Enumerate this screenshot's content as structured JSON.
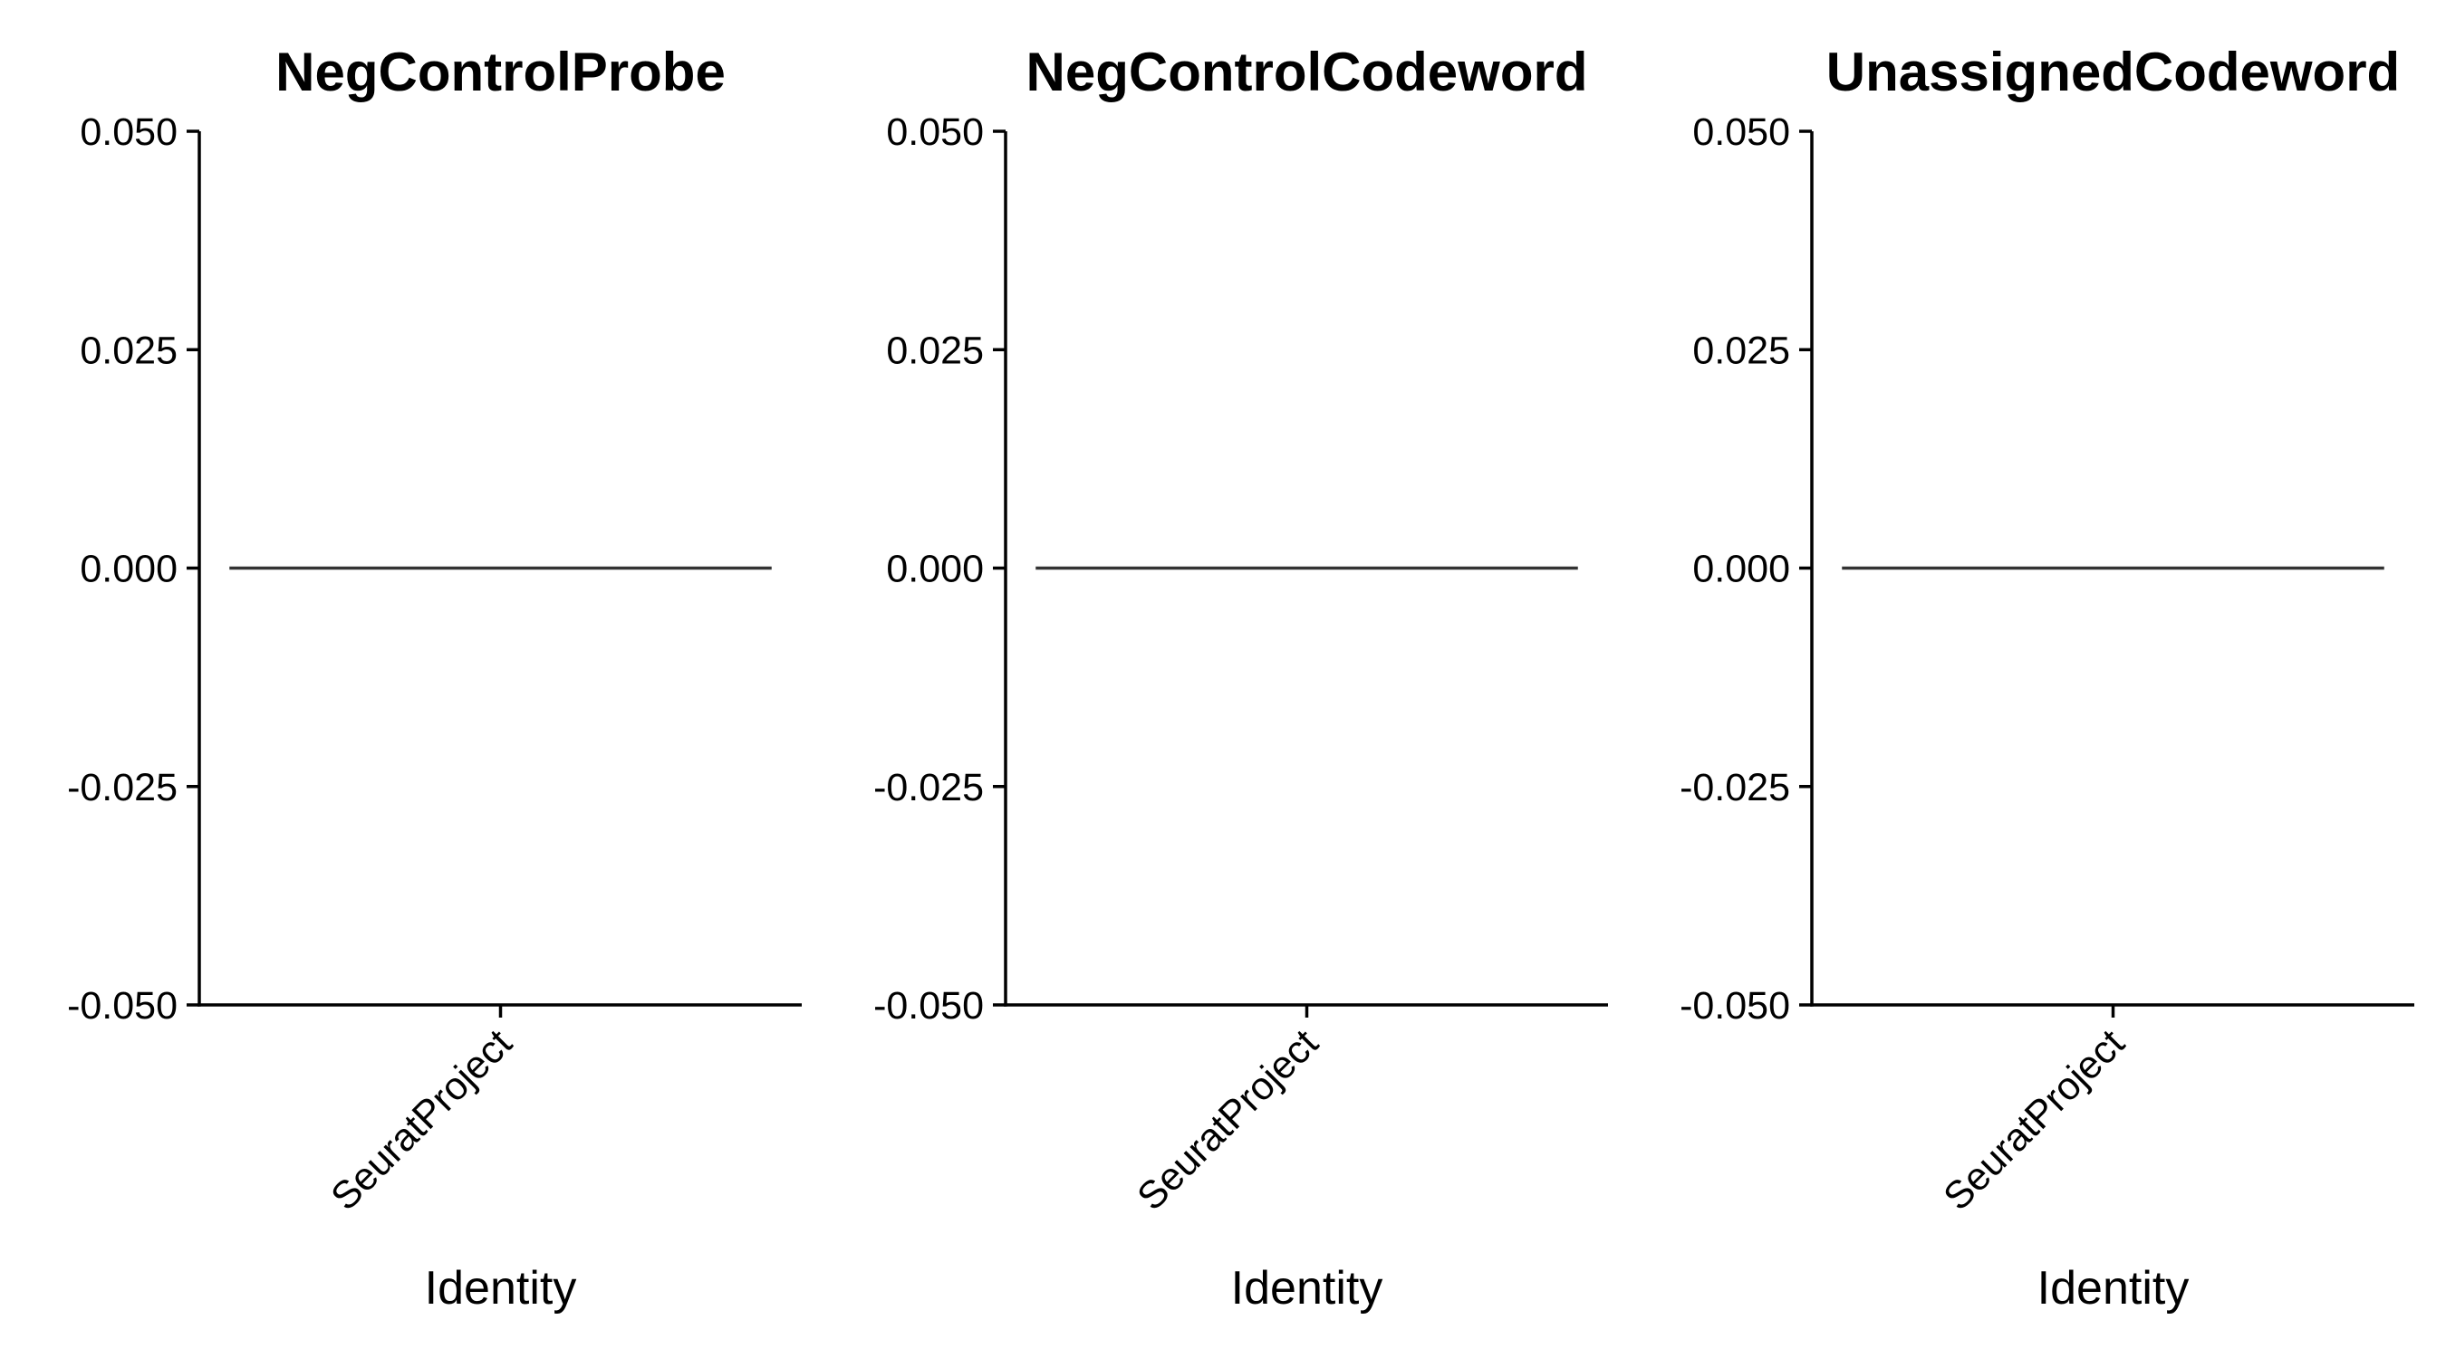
{
  "chart_data": [
    {
      "type": "violin",
      "title": "NegControlProbe",
      "xlabel": "Identity",
      "ylabel": "",
      "categories": [
        "SeuratProject"
      ],
      "values": [
        0.0
      ],
      "ylim": [
        -0.05,
        0.05
      ],
      "yticks": [
        "0.050",
        "0.025",
        "0.000",
        "-0.025",
        "-0.050"
      ],
      "ytick_values": [
        0.05,
        0.025,
        0.0,
        -0.025,
        -0.05
      ],
      "grid": false,
      "legend": "none"
    },
    {
      "type": "violin",
      "title": "NegControlCodeword",
      "xlabel": "Identity",
      "ylabel": "",
      "categories": [
        "SeuratProject"
      ],
      "values": [
        0.0
      ],
      "ylim": [
        -0.05,
        0.05
      ],
      "yticks": [
        "0.050",
        "0.025",
        "0.000",
        "-0.025",
        "-0.050"
      ],
      "ytick_values": [
        0.05,
        0.025,
        0.0,
        -0.025,
        -0.05
      ],
      "grid": false,
      "legend": "none"
    },
    {
      "type": "violin",
      "title": "UnassignedCodeword",
      "xlabel": "Identity",
      "ylabel": "",
      "categories": [
        "SeuratProject"
      ],
      "values": [
        0.0
      ],
      "ylim": [
        -0.05,
        0.05
      ],
      "yticks": [
        "0.050",
        "0.025",
        "0.000",
        "-0.025",
        "-0.050"
      ],
      "ytick_values": [
        0.05,
        0.025,
        0.0,
        -0.025,
        -0.05
      ],
      "grid": false,
      "legend": "none"
    }
  ]
}
